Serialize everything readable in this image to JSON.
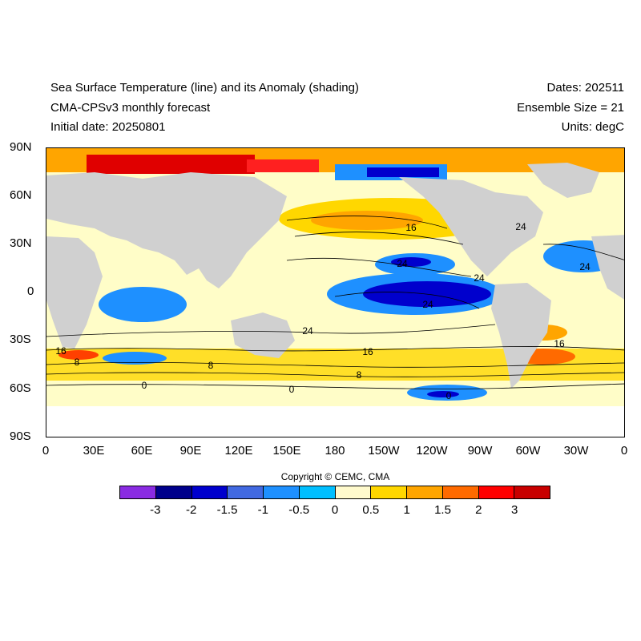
{
  "header": {
    "title": "Sea Surface Temperature (line) and its Anomaly (shading)",
    "model": "CMA-CPSv3 monthly forecast",
    "initial_date": "Initial date: 20250801",
    "dates": "Dates: 202511",
    "ensemble": "Ensemble Size = 21",
    "units": "Units: degC"
  },
  "map": {
    "lat_labels": [
      "90N",
      "60N",
      "30N",
      "0",
      "30S",
      "60S",
      "90S"
    ],
    "lon_labels": [
      "0",
      "30E",
      "60E",
      "90E",
      "120E",
      "150E",
      "180",
      "150W",
      "120W",
      "90W",
      "60W",
      "30W",
      "0"
    ],
    "land_color": "#d0d0d0",
    "contour_labels": [
      "16",
      "24",
      "24",
      "24",
      "16",
      "24",
      "16",
      "24",
      "16",
      "8",
      "8",
      "8",
      "0",
      "0",
      "0",
      "24"
    ]
  },
  "copyright": "Copyright © CEMC, CMA",
  "colorbar": {
    "colors": [
      "#8a2be2",
      "#00008b",
      "#0000cd",
      "#4169e1",
      "#1e90ff",
      "#00bfff",
      "#fffacd",
      "#ffd700",
      "#ffa500",
      "#ff6a00",
      "#ff0000",
      "#c80000"
    ],
    "labels": [
      "-3",
      "-2",
      "-1.5",
      "-1",
      "-0.5",
      "0",
      "0.5",
      "1",
      "1.5",
      "2",
      "3"
    ]
  }
}
